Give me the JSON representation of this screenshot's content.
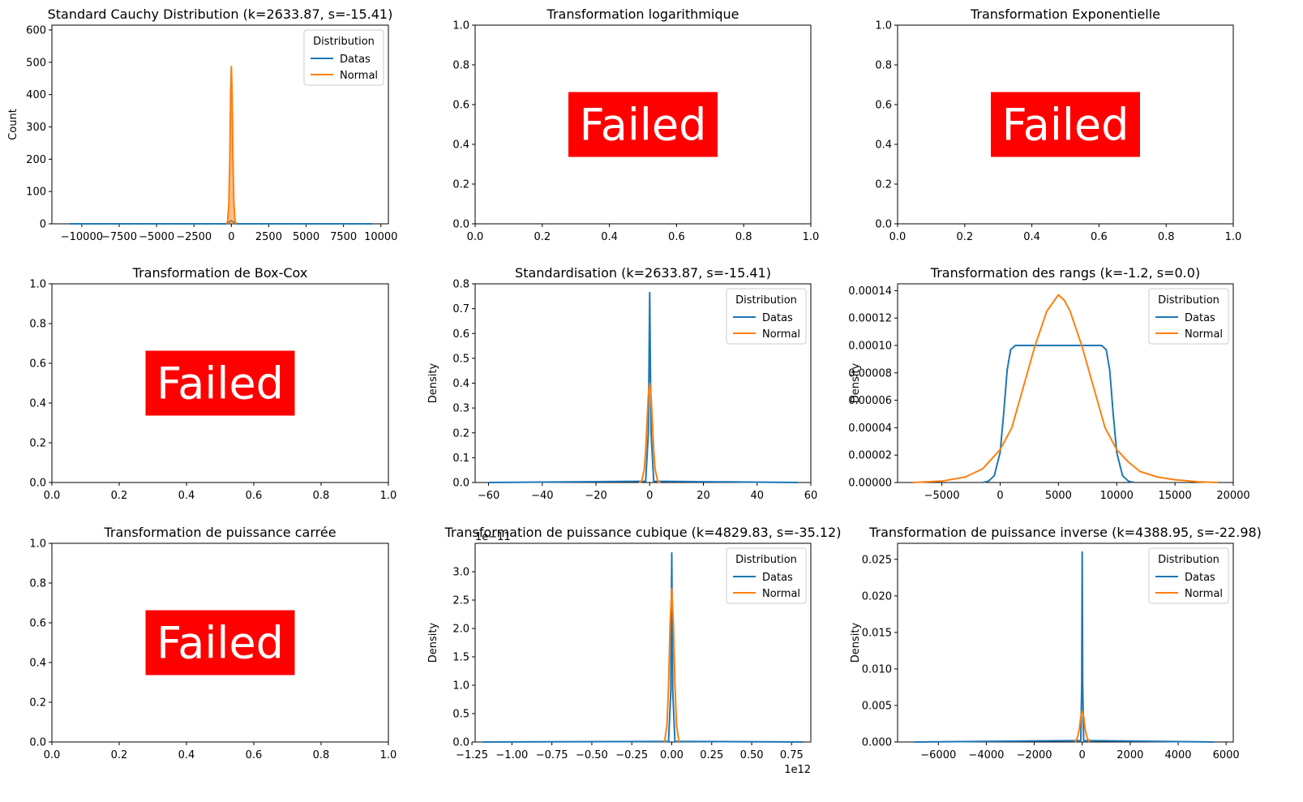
{
  "colors": {
    "datas": "#1f77b4",
    "normal": "#ff7f0e",
    "failed_bg": "#ff0000",
    "failed_text": "#ffffff"
  },
  "failed_label": "Failed",
  "legend": {
    "title": "Distribution",
    "entries": [
      "Datas",
      "Normal"
    ]
  },
  "chart_data": [
    {
      "type": "line",
      "title": "Standard Cauchy Distribution (k=2633.87, s=-15.41)",
      "ylabel": "Count",
      "xlim": [
        -12000,
        10500
      ],
      "ylim": [
        0,
        615
      ],
      "xticks": [
        -10000,
        -7500,
        -5000,
        -2500,
        0,
        2500,
        5000,
        7500,
        10000
      ],
      "xtick_labels": [
        "−10000",
        "−7500",
        "−5000",
        "−2500",
        "0",
        "2500",
        "5000",
        "7500",
        "10000"
      ],
      "yticks": [
        0,
        100,
        200,
        300,
        400,
        500,
        600
      ],
      "ytick_labels": [
        "0",
        "100",
        "200",
        "300",
        "400",
        "500",
        "600"
      ],
      "legend_position": "top-right",
      "series": [
        {
          "name": "Datas",
          "x": [
            -10800,
            -300,
            0,
            300,
            9400
          ],
          "y": [
            0,
            0,
            10,
            0,
            0
          ]
        },
        {
          "name": "Normal",
          "fill": true,
          "x": [
            -330,
            -250,
            -170,
            -100,
            -50,
            0,
            50,
            100,
            170,
            250,
            330
          ],
          "y": [
            0,
            8,
            60,
            210,
            400,
            487,
            400,
            210,
            60,
            8,
            0
          ]
        }
      ]
    },
    {
      "type": "failed",
      "title": "Transformation logarithmique"
    },
    {
      "type": "failed",
      "title": "Transformation Exponentielle"
    },
    {
      "type": "failed",
      "title": "Transformation de Box-Cox"
    },
    {
      "type": "line",
      "title": "Standardisation (k=2633.87, s=-15.41)",
      "ylabel": "Density",
      "xlim": [
        -65,
        60
      ],
      "ylim": [
        0,
        0.8
      ],
      "xticks": [
        -60,
        -40,
        -20,
        0,
        20,
        40,
        60
      ],
      "xtick_labels": [
        "−60",
        "−40",
        "−20",
        "0",
        "20",
        "40",
        "60"
      ],
      "yticks": [
        0,
        0.1,
        0.2,
        0.3,
        0.4,
        0.5,
        0.6,
        0.7,
        0.8
      ],
      "ytick_labels": [
        "0.0",
        "0.1",
        "0.2",
        "0.3",
        "0.4",
        "0.5",
        "0.6",
        "0.7",
        "0.8"
      ],
      "legend_position": "top-right",
      "series": [
        {
          "name": "Datas",
          "x": [
            -60,
            -1.5,
            -0.5,
            0,
            0.5,
            1.5,
            55
          ],
          "y": [
            0,
            0.005,
            0.2,
            0.765,
            0.2,
            0.005,
            0
          ]
        },
        {
          "name": "Normal",
          "x": [
            -4,
            -3,
            -2,
            -1.5,
            -1,
            -0.5,
            0,
            0.5,
            1,
            1.5,
            2,
            3,
            4
          ],
          "y": [
            0,
            0.004,
            0.054,
            0.13,
            0.242,
            0.352,
            0.399,
            0.352,
            0.242,
            0.13,
            0.054,
            0.004,
            0
          ]
        }
      ]
    },
    {
      "type": "line",
      "title": "Transformation des rangs (k=-1.2, s=0.0)",
      "ylabel": "Density",
      "xlim": [
        -8800,
        20000
      ],
      "ylim": [
        0,
        0.000145
      ],
      "xticks": [
        -5000,
        0,
        5000,
        10000,
        15000,
        20000
      ],
      "xtick_labels": [
        "−5000",
        "0",
        "5000",
        "10000",
        "15000",
        "20000"
      ],
      "yticks": [
        0,
        2e-05,
        4e-05,
        6e-05,
        8e-05,
        0.0001,
        0.00012,
        0.00014
      ],
      "ytick_labels": [
        "0.00000",
        "0.00002",
        "0.00004",
        "0.00006",
        "0.00008",
        "0.00010",
        "0.00012",
        "0.00014"
      ],
      "legend_position": "top-right",
      "series": [
        {
          "name": "Datas",
          "x": [
            -1500,
            -1000,
            -500,
            0,
            300,
            600,
            900,
            1300,
            8700,
            9100,
            9400,
            9700,
            10000,
            10500,
            11000,
            11500
          ],
          "y": [
            0,
            1e-06,
            5e-06,
            2.2e-05,
            5e-05,
            8.2e-05,
            9.7e-05,
            0.0001,
            0.0001,
            9.7e-05,
            8.2e-05,
            5e-05,
            2.2e-05,
            5e-06,
            1e-06,
            0
          ]
        },
        {
          "name": "Normal",
          "x": [
            -7500,
            -5000,
            -3000,
            -1500,
            0,
            1000,
            2000,
            3000,
            4000,
            5000,
            5500,
            6000,
            7000,
            8000,
            9000,
            10000,
            11000,
            12000,
            13500,
            15000,
            17000,
            18700
          ],
          "y": [
            0,
            1e-06,
            4e-06,
            1e-05,
            2.4e-05,
            4e-05,
            7e-05,
            0.0001,
            0.000125,
            0.000137,
            0.000133,
            0.000125,
            0.0001,
            7e-05,
            4e-05,
            2.4e-05,
            1.5e-05,
            8e-06,
            4e-06,
            2e-06,
            5e-07,
            0
          ]
        }
      ]
    },
    {
      "type": "failed",
      "title": "Transformation de puissance carrée"
    },
    {
      "type": "line",
      "title": "Transformation de puissance cubique (k=4829.83, s=-35.12)",
      "ylabel": "Density",
      "x_offset_label": "1e12",
      "y_offset_label": "1e−11",
      "xlim": [
        -1.23,
        0.87
      ],
      "ylim": [
        0,
        3.5
      ],
      "xticks": [
        -1.25,
        -1.0,
        -0.75,
        -0.5,
        -0.25,
        0.0,
        0.25,
        0.5,
        0.75
      ],
      "xtick_labels": [
        "−1.25",
        "−1.00",
        "−0.75",
        "−0.50",
        "−0.25",
        "0.00",
        "0.25",
        "0.50",
        "0.75"
      ],
      "yticks": [
        0,
        0.5,
        1.0,
        1.5,
        2.0,
        2.5,
        3.0
      ],
      "ytick_labels": [
        "0.0",
        "0.5",
        "1.0",
        "1.5",
        "2.0",
        "2.5",
        "3.0"
      ],
      "legend_position": "top-right",
      "series": [
        {
          "name": "Datas",
          "x": [
            -1.18,
            -0.02,
            -0.006,
            0,
            0.006,
            0.02,
            0.82
          ],
          "y": [
            0,
            0.01,
            0.9,
            3.33,
            0.9,
            0.01,
            0
          ]
        },
        {
          "name": "Normal",
          "x": [
            -0.045,
            -0.03,
            -0.02,
            -0.01,
            0,
            0.01,
            0.02,
            0.03,
            0.045
          ],
          "y": [
            0,
            0.3,
            1.0,
            2.1,
            2.7,
            2.1,
            1.0,
            0.3,
            0
          ]
        }
      ]
    },
    {
      "type": "line",
      "title": "Transformation de puissance inverse (k=4388.95, s=-22.98)",
      "ylabel": "Density",
      "xlim": [
        -7700,
        6300
      ],
      "ylim": [
        0,
        0.0272
      ],
      "xticks": [
        -6000,
        -4000,
        -2000,
        0,
        2000,
        4000,
        6000
      ],
      "xtick_labels": [
        "−6000",
        "−4000",
        "−2000",
        "0",
        "2000",
        "4000",
        "6000"
      ],
      "yticks": [
        0,
        0.005,
        0.01,
        0.015,
        0.02,
        0.025
      ],
      "ytick_labels": [
        "0.000",
        "0.005",
        "0.010",
        "0.015",
        "0.020",
        "0.025"
      ],
      "legend_position": "top-right",
      "series": [
        {
          "name": "Datas",
          "x": [
            -7000,
            -60,
            -20,
            0,
            20,
            60,
            5500
          ],
          "y": [
            0,
            0.0002,
            0.008,
            0.026,
            0.008,
            0.0002,
            0
          ]
        },
        {
          "name": "Normal",
          "x": [
            -300,
            -200,
            -120,
            -60,
            0,
            60,
            120,
            200,
            300
          ],
          "y": [
            0,
            0.0006,
            0.0018,
            0.0035,
            0.0042,
            0.0035,
            0.0018,
            0.0006,
            0
          ]
        }
      ]
    }
  ]
}
